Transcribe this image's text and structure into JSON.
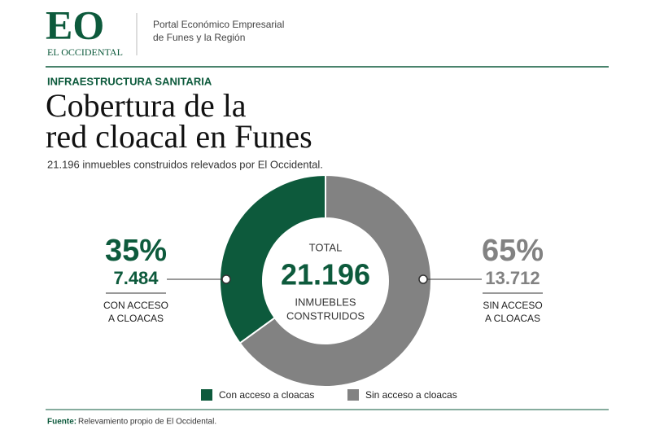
{
  "header": {
    "logo": "EO",
    "brand": "EL OCCIDENTAL",
    "tagline": [
      "Portal Económico Empresarial",
      "de Funes y la Región"
    ]
  },
  "chart_data": {
    "type": "pie",
    "kicker": "INFRAESTRUCTURA SANITARIA",
    "title": [
      "Cobertura de la",
      "red cloacal en Funes"
    ],
    "subtitle": "21.196 inmuebles construidos relevados por El Occidental.",
    "categories": [
      "Con acceso a cloacas",
      "Sin acceso a cloacas"
    ],
    "values": [
      35,
      65
    ],
    "value_labels": [
      "35%",
      "65%"
    ],
    "counts": [
      "7.484",
      "13.712"
    ],
    "callouts": [
      [
        "CON ACCESO",
        "A CLOACAS"
      ],
      [
        "SIN ACCESO",
        "A CLOACAS"
      ]
    ],
    "colors": [
      "#0d5a3c",
      "#828282"
    ],
    "center": {
      "top": "TOTAL",
      "total": "21.196",
      "bottom": [
        "INMUEBLES",
        "CONSTRUIDOS"
      ]
    },
    "source": {
      "label": "Fuente:",
      "text": "Relevamiento propio de El Occidental."
    }
  }
}
